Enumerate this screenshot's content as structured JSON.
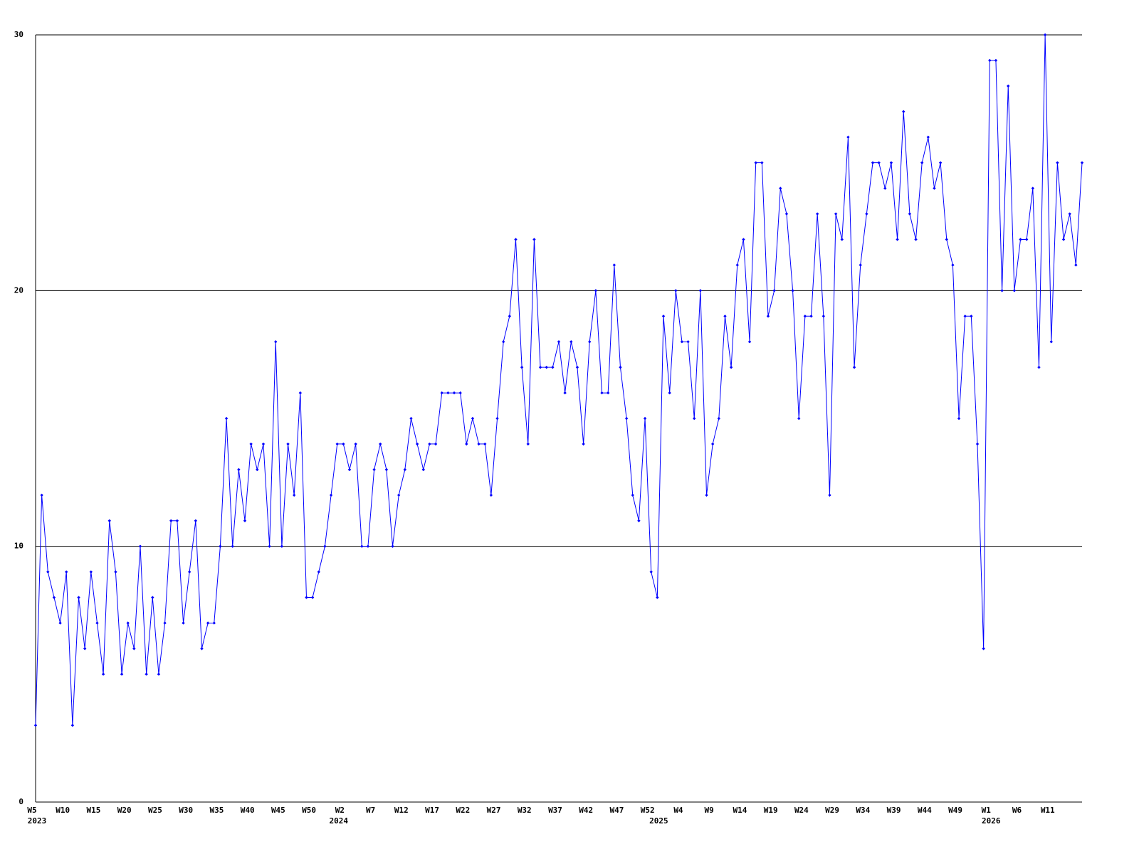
{
  "chart_data": {
    "type": "line",
    "categories": [
      "W5",
      null,
      null,
      null,
      null,
      "W10",
      null,
      null,
      null,
      null,
      "W15",
      null,
      null,
      null,
      null,
      "W20",
      null,
      null,
      null,
      null,
      "W25",
      null,
      null,
      null,
      null,
      "W30",
      null,
      null,
      null,
      null,
      "W35",
      null,
      null,
      null,
      null,
      "W40",
      null,
      null,
      null,
      null,
      "W45",
      null,
      null,
      null,
      null,
      "W50",
      null,
      null,
      null,
      null,
      "W2",
      null,
      null,
      null,
      null,
      "W7",
      null,
      null,
      null,
      null,
      "W12",
      null,
      null,
      null,
      null,
      "W17",
      null,
      null,
      null,
      null,
      "W22",
      null,
      null,
      null,
      null,
      "W27",
      null,
      null,
      null,
      null,
      "W32",
      null,
      null,
      null,
      null,
      "W37",
      null,
      null,
      null,
      null,
      "W42",
      null,
      null,
      null,
      null,
      "W47",
      null,
      null,
      null,
      null,
      "W52",
      null,
      null,
      null,
      null,
      "W4",
      null,
      null,
      null,
      null,
      "W9",
      null,
      null,
      null,
      null,
      "W14",
      null,
      null,
      null,
      null,
      "W19",
      null,
      null,
      null,
      null,
      "W24",
      null,
      null,
      null,
      null,
      "W29",
      null,
      null,
      null,
      null,
      "W34",
      null,
      null,
      null,
      null,
      "W39",
      null,
      null,
      null,
      null,
      "W44",
      null,
      null,
      null,
      null,
      "W49",
      null,
      null,
      null,
      null,
      "W1",
      null,
      null,
      null,
      null,
      "W6",
      null,
      null,
      null,
      null,
      "W11",
      null,
      null,
      null,
      null,
      null
    ],
    "category_groups": [
      {
        "label": "2023",
        "start": 0
      },
      {
        "label": "2024",
        "start": 49
      },
      {
        "label": "2025",
        "start": 101
      },
      {
        "label": "2026",
        "start": 155
      }
    ],
    "series": [
      {
        "color": "#0000ff",
        "values": [
          3,
          12,
          9,
          8,
          7,
          9,
          3,
          8,
          6,
          9,
          7,
          5,
          11,
          9,
          5,
          7,
          6,
          10,
          5,
          8,
          5,
          7,
          11,
          11,
          7,
          9,
          11,
          6,
          7,
          7,
          10,
          15,
          10,
          13,
          11,
          14,
          13,
          14,
          10,
          18,
          10,
          14,
          12,
          16,
          8,
          8,
          9,
          10,
          12,
          14,
          14,
          13,
          14,
          10,
          10,
          13,
          14,
          13,
          10,
          12,
          13,
          15,
          14,
          13,
          14,
          14,
          16,
          16,
          16,
          16,
          14,
          15,
          14,
          14,
          12,
          15,
          18,
          19,
          22,
          17,
          14,
          22,
          17,
          17,
          17,
          18,
          16,
          18,
          17,
          14,
          18,
          20,
          16,
          16,
          21,
          17,
          15,
          12,
          11,
          15,
          9,
          8,
          19,
          16,
          20,
          18,
          18,
          15,
          20,
          12,
          14,
          15,
          19,
          17,
          21,
          22,
          18,
          25,
          25,
          19,
          20,
          24,
          23,
          20,
          15,
          19,
          19,
          23,
          19,
          12,
          23,
          22,
          26,
          17,
          21,
          23,
          25,
          25,
          24,
          25,
          22,
          27,
          23,
          22,
          25,
          26,
          24,
          25,
          22,
          21,
          15,
          19,
          19,
          14,
          6,
          29,
          29,
          20,
          28,
          20,
          22,
          22,
          24,
          17,
          30,
          18,
          25,
          22,
          23,
          21,
          25
        ]
      }
    ],
    "ylim": [
      0,
      30
    ],
    "yticks": [
      0,
      10,
      20,
      30
    ],
    "grid": true
  }
}
